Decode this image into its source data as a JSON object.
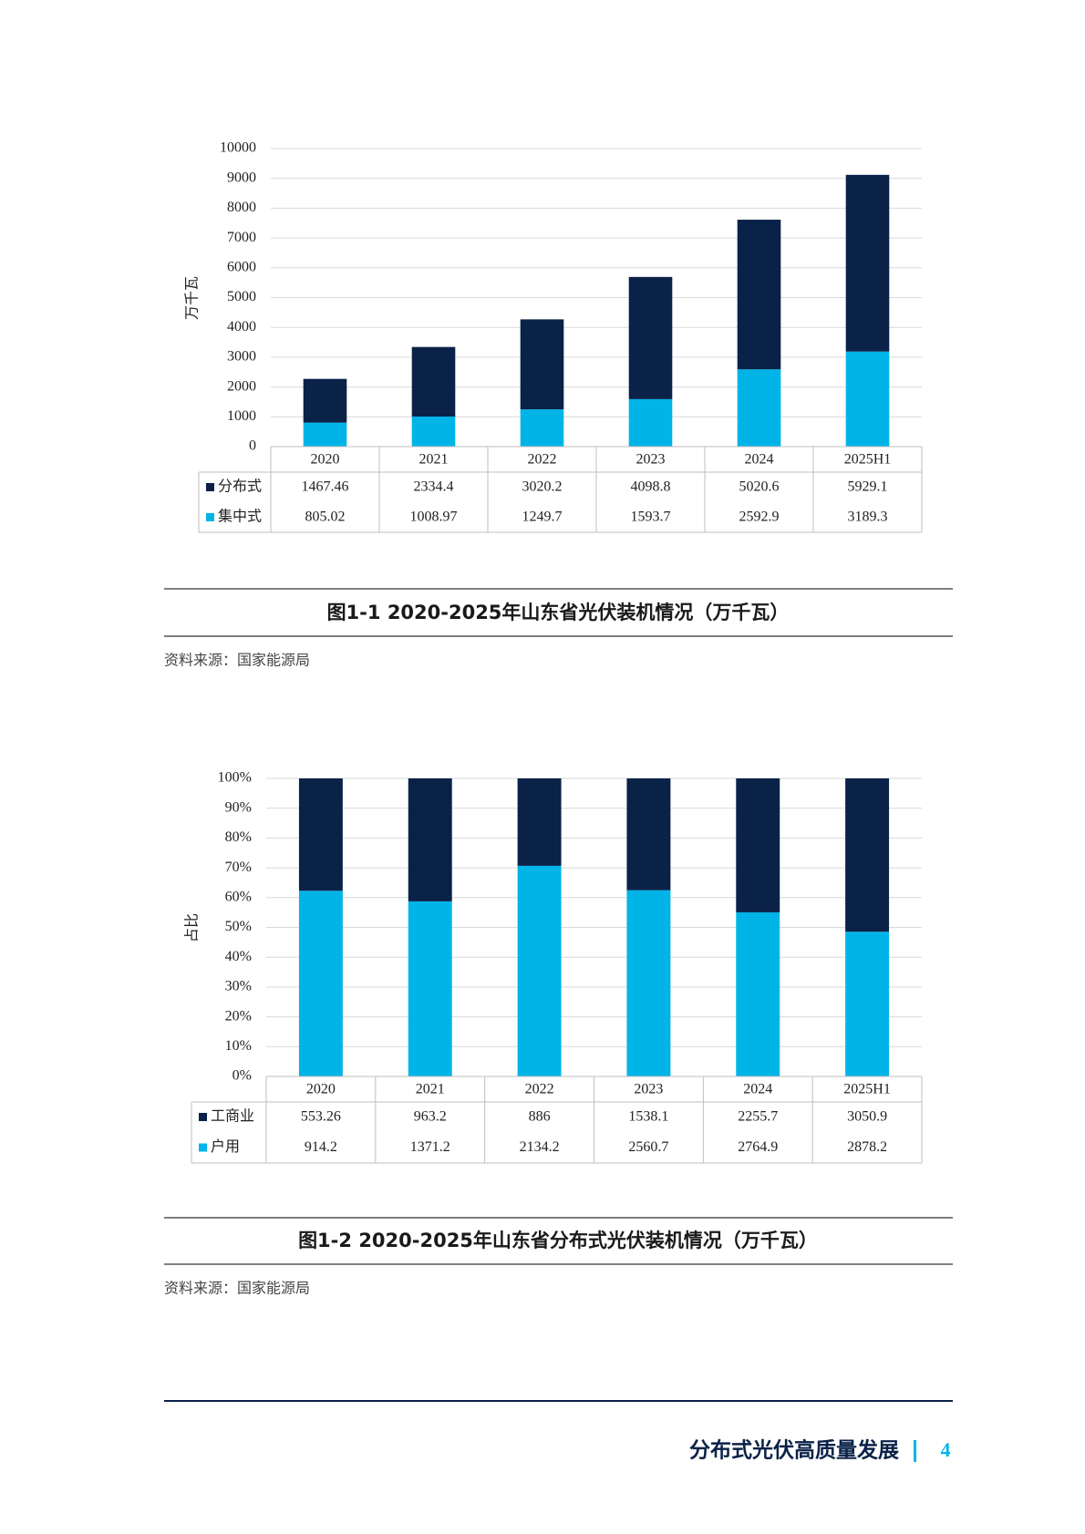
{
  "chart_data": [
    {
      "type": "bar",
      "stacking": "normal",
      "y_label": "万千瓦",
      "categories": [
        "2020",
        "2021",
        "2022",
        "2023",
        "2024",
        "2025H1"
      ],
      "series": [
        {
          "name": "分布式",
          "color": "#0a2248",
          "values": [
            1467.46,
            2334.4,
            3020.2,
            4098.8,
            5020.6,
            5929.1
          ]
        },
        {
          "name": "集中式",
          "color": "#00b4e8",
          "values": [
            805.02,
            1008.97,
            1249.7,
            1593.7,
            2592.9,
            3189.3
          ]
        }
      ],
      "ylim": [
        0,
        10000
      ],
      "yticks": [
        0,
        1000,
        2000,
        3000,
        4000,
        5000,
        6000,
        7000,
        8000,
        9000,
        10000
      ],
      "grid": true
    },
    {
      "type": "bar",
      "stacking": "percent",
      "y_label": "占比",
      "categories": [
        "2020",
        "2021",
        "2022",
        "2023",
        "2024",
        "2025H1"
      ],
      "series": [
        {
          "name": "工商业",
          "color": "#0a2248",
          "values": [
            553.26,
            963.2,
            886,
            1538.1,
            2255.7,
            3050.9
          ]
        },
        {
          "name": "户用",
          "color": "#00b4e8",
          "values": [
            914.2,
            1371.2,
            2134.2,
            2560.7,
            2764.9,
            2878.2
          ]
        }
      ],
      "ylim": [
        0,
        100
      ],
      "yticks": [
        {
          "value": 0,
          "label": "0%"
        },
        {
          "value": 10,
          "label": "10%"
        },
        {
          "value": 20,
          "label": "20%"
        },
        {
          "value": 30,
          "label": "30%"
        },
        {
          "value": 40,
          "label": "40%"
        },
        {
          "value": 50,
          "label": "50%"
        },
        {
          "value": 60,
          "label": "60%"
        },
        {
          "value": 70,
          "label": "70%"
        },
        {
          "value": 80,
          "label": "80%"
        },
        {
          "value": 90,
          "label": "90%"
        },
        {
          "value": 100,
          "label": "100%"
        }
      ],
      "grid": true
    }
  ],
  "figures": [
    {
      "caption": "图1-1  2020-2025年山东省光伏装机情况（万千瓦）",
      "source": "资料来源：国家能源局"
    },
    {
      "caption": "图1-2  2020-2025年山东省分布式光伏装机情况（万千瓦）",
      "source": "资料来源：国家能源局"
    }
  ],
  "footer": {
    "title": "分布式光伏高质量发展",
    "page": 4
  }
}
